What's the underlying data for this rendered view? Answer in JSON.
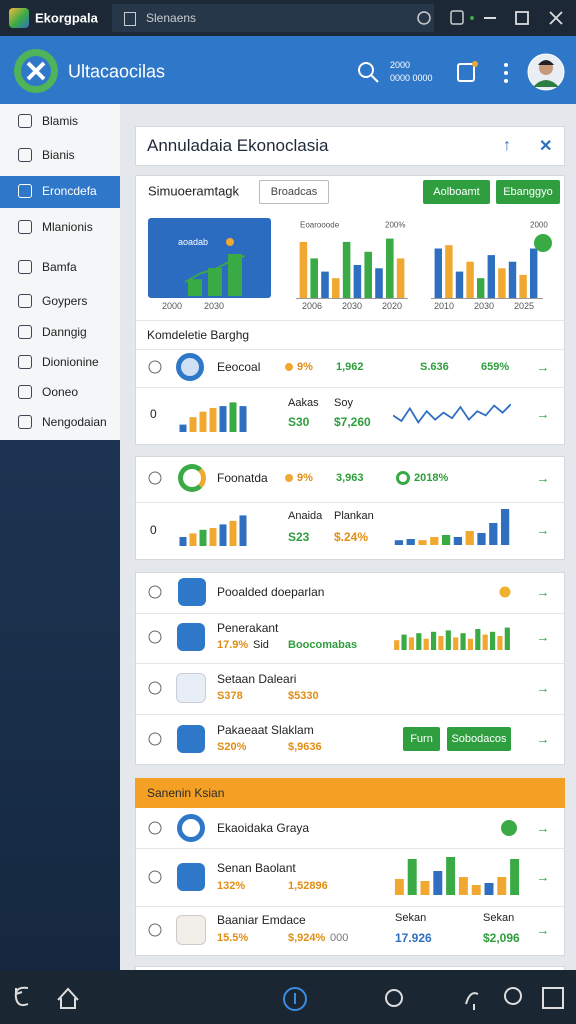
{
  "window": {
    "app": "Ekorgpala",
    "tab": "Slenaens"
  },
  "header": {
    "title": "Ultacaocilas",
    "stat_top": "2000",
    "stat_bottom": "0000 0000"
  },
  "sidebar": {
    "items": [
      "Blamis",
      "Bianis",
      "Eroncdefa",
      "Mlanionis",
      "Bamfa",
      "Goypers",
      "Danngig",
      "Dionionine",
      "Ooneo",
      "Nengodaian"
    ]
  },
  "panel": {
    "title": "Annuladaia Ekonoclasia"
  },
  "overview": {
    "title": "Simuoeramtagk",
    "filter": "Broadcas",
    "buttons": [
      "Aolboamt",
      "Ebanggyo"
    ],
    "charts": [
      {
        "label": "aoadab",
        "xlabels": [
          "2000",
          "2030"
        ],
        "bars": {
          "type": "bar",
          "ylim": [
            0,
            100
          ],
          "values": [
            30,
            50,
            75
          ],
          "colors": [
            "#3aaa45",
            "#3aaa45",
            "#3aaa45"
          ]
        },
        "trend": {
          "type": "line",
          "ylim": [
            0,
            100
          ],
          "values": [
            25,
            40,
            48,
            62,
            72
          ],
          "color": "#3aaa45"
        }
      },
      {
        "legend": [
          "Eoarooode",
          "200%"
        ],
        "xlabels": [
          "2006",
          "2030",
          "2020"
        ],
        "bars": {
          "type": "bar",
          "ylim": [
            0,
            100
          ],
          "values": [
            85,
            60,
            40,
            30,
            85,
            50,
            70,
            45,
            90,
            60
          ],
          "colors": [
            "#f0a830",
            "#3aaa45",
            "#2f6fc0",
            "#f0a830",
            "#3aaa45",
            "#2f6fc0",
            "#3aaa45",
            "#2f6fc0",
            "#3aaa45",
            "#f0a830"
          ]
        }
      },
      {
        "legend": [
          "2000"
        ],
        "xlabels": [
          "2010",
          "2030",
          "2025"
        ],
        "bars": {
          "type": "bar",
          "ylim": [
            0,
            100
          ],
          "values": [
            75,
            80,
            40,
            55,
            30,
            65,
            45,
            55,
            35,
            75
          ],
          "colors": [
            "#2f6fc0",
            "#f0a830",
            "#2f6fc0",
            "#f0a830",
            "#3aaa45",
            "#2f6fc0",
            "#f0a830",
            "#2f6fc0",
            "#f0a830",
            "#2f6fc0"
          ]
        }
      }
    ]
  },
  "card1": {
    "section": "Komdeletie Barghg",
    "row_a": {
      "name": "Eeocoal",
      "pct": "9%",
      "count": "1,962",
      "amount": "S.636",
      "growth": "659%"
    },
    "row_b": {
      "index": "0",
      "label1": "Aakas",
      "label2": "Soy",
      "value1": "S30",
      "value2": "$7,260",
      "bars": {
        "type": "bar",
        "ylim": [
          0,
          100
        ],
        "values": [
          20,
          40,
          55,
          65,
          70,
          80,
          70
        ],
        "colors": [
          "#2f6fc0",
          "#f0a830",
          "#f0a830",
          "#f0a830",
          "#2f6fc0",
          "#3aaa45",
          "#2f6fc0"
        ]
      },
      "trend": {
        "type": "line",
        "ylim": [
          0,
          100
        ],
        "values": [
          45,
          25,
          70,
          20,
          60,
          30,
          55,
          35,
          75,
          30,
          60,
          45,
          80,
          55,
          85
        ],
        "color": "#2f6fc0"
      }
    }
  },
  "card2": {
    "row_a": {
      "name": "Foonatda",
      "pct": "9%",
      "count": "3,963",
      "growth": "2018%"
    },
    "row_b": {
      "index": "0",
      "label1": "Anaida",
      "label2": "Plankan",
      "value1": "S23",
      "value2": "$.24%",
      "bars": {
        "type": "bar",
        "ylim": [
          0,
          100
        ],
        "values": [
          25,
          35,
          45,
          50,
          60,
          70,
          85
        ],
        "colors": [
          "#2f6fc0",
          "#f0a830",
          "#3aaa45",
          "#f0a830",
          "#2f6fc0",
          "#f0a830",
          "#2f6fc0"
        ]
      },
      "trend": {
        "type": "bar",
        "ylim": [
          0,
          100
        ],
        "values": [
          12,
          15,
          12,
          20,
          25,
          20,
          35,
          30,
          55,
          90
        ],
        "colors": [
          "#2f6fc0",
          "#2f6fc0",
          "#f0a830",
          "#f0a830",
          "#3aaa45",
          "#2f6fc0",
          "#f0a830",
          "#2f6fc0",
          "#2f6fc0",
          "#2f6fc0"
        ]
      }
    }
  },
  "card3": {
    "row_a": {
      "name": "Pooalded doeparlan"
    },
    "row_b": {
      "name": "Penerakant",
      "pct": "17.9%",
      "unit": "Sid",
      "value": "Boocomabas",
      "bars": {
        "type": "bar",
        "ylim": [
          0,
          100
        ],
        "values": [
          35,
          55,
          45,
          60,
          40,
          65,
          50,
          70,
          45,
          60,
          40,
          75,
          55,
          65,
          50,
          80
        ],
        "colors": [
          "#f0a830",
          "#3aaa45",
          "#f0a830",
          "#3aaa45",
          "#f0a830",
          "#3aaa45",
          "#f0a830",
          "#3aaa45",
          "#f0a830",
          "#3aaa45",
          "#f0a830",
          "#3aaa45",
          "#f0a830",
          "#3aaa45",
          "#f0a830",
          "#3aaa45"
        ]
      }
    },
    "row_c": {
      "name": "Setaan Daleari",
      "pct": "S378",
      "value": "$5330"
    },
    "row_d": {
      "name": "Pakaeaat Slaklam",
      "pct": "S20%",
      "value": "$,9636",
      "buttons": [
        "Furn",
        "Sobodacos"
      ]
    }
  },
  "card4": {
    "section": "Sanenin Ksian",
    "row_a": {
      "name": "Ekaoidaka Graya"
    },
    "row_b": {
      "name": "Senan Baolant",
      "pct": "132%",
      "value": "1,52896",
      "bars": {
        "type": "bar",
        "ylim": [
          0,
          100
        ],
        "values": [
          40,
          90,
          35,
          60,
          95,
          45,
          25,
          30,
          45,
          90
        ],
        "colors": [
          "#f0a830",
          "#3aaa45",
          "#f0a830",
          "#2f6fc0",
          "#3aaa45",
          "#f0a830",
          "#f0a830",
          "#2f6fc0",
          "#f0a830",
          "#3aaa45"
        ]
      }
    },
    "row_c": {
      "name": "Baaniar Emdace",
      "pct": "15.5%",
      "value": "$,924%",
      "note": "000",
      "label1": "Sekan",
      "value1": "17.926",
      "label2": "Sekan",
      "value2": "$2,096"
    }
  }
}
